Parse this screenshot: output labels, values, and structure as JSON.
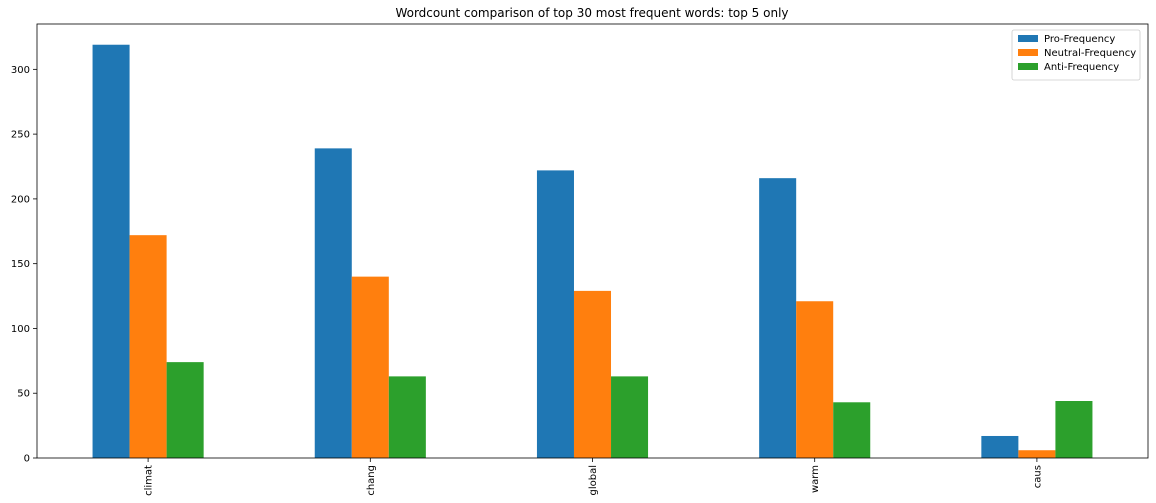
{
  "chart_data": {
    "type": "bar",
    "title": "Wordcount comparison of top 30 most frequent words: top 5 only",
    "xlabel": "",
    "ylabel": "",
    "categories": [
      "climat",
      "chang",
      "global",
      "warm",
      "caus"
    ],
    "series": [
      {
        "name": "Pro-Frequency",
        "values": [
          319,
          239,
          222,
          216,
          17
        ],
        "color": "#1f77b4"
      },
      {
        "name": "Neutral-Frequency",
        "values": [
          172,
          140,
          129,
          121,
          6
        ],
        "color": "#ff7f0e"
      },
      {
        "name": "Anti-Frequency",
        "values": [
          74,
          63,
          63,
          43,
          44
        ],
        "color": "#2ca02c"
      }
    ],
    "ylim": [
      0,
      335
    ],
    "yticks": [
      0,
      50,
      100,
      150,
      200,
      250,
      300
    ],
    "legend": "top-right",
    "grid": false
  }
}
